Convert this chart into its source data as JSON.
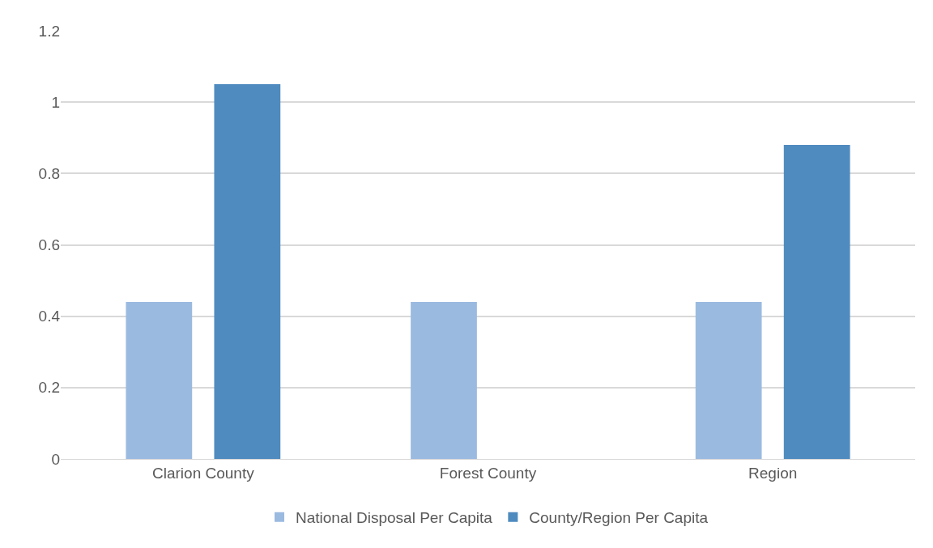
{
  "chart_data": {
    "type": "bar",
    "categories": [
      "Clarion County",
      "Forest County",
      "Region"
    ],
    "series": [
      {
        "name": "National Disposal Per Capita",
        "color": "#9bbae0",
        "values": [
          0.44,
          0.44,
          0.44
        ]
      },
      {
        "name": "County/Region Per Capita",
        "color": "#4f8bbf",
        "values": [
          1.05,
          null,
          0.88
        ]
      }
    ],
    "ylim": [
      0,
      1.2
    ],
    "yticks": [
      0,
      0.2,
      0.4,
      0.6,
      0.8,
      1,
      1.2
    ],
    "grid": "y",
    "legend": "bottom"
  }
}
